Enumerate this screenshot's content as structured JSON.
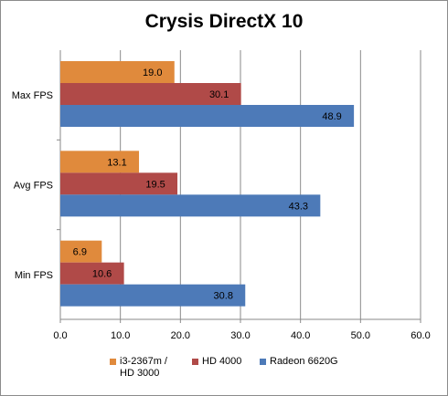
{
  "chart_data": {
    "type": "bar",
    "orientation": "horizontal",
    "title": "Crysis DirectX 10",
    "categories": [
      "Max FPS",
      "Avg FPS",
      "Min FPS"
    ],
    "series": [
      {
        "name": "i3-2367m /\nHD 3000",
        "values": [
          19.0,
          13.1,
          6.9
        ],
        "color": "#e08a3c"
      },
      {
        "name": "HD 4000",
        "values": [
          30.1,
          19.5,
          10.6
        ],
        "color": "#b04a48"
      },
      {
        "name": "Radeon 6620G",
        "values": [
          48.9,
          43.3,
          30.8
        ],
        "color": "#4d7ab8"
      }
    ],
    "xlim": [
      0,
      60
    ],
    "xticks": [
      "0.0",
      "10.0",
      "20.0",
      "30.0",
      "40.0",
      "50.0",
      "60.0"
    ],
    "grid": true,
    "legend_position": "bottom"
  }
}
